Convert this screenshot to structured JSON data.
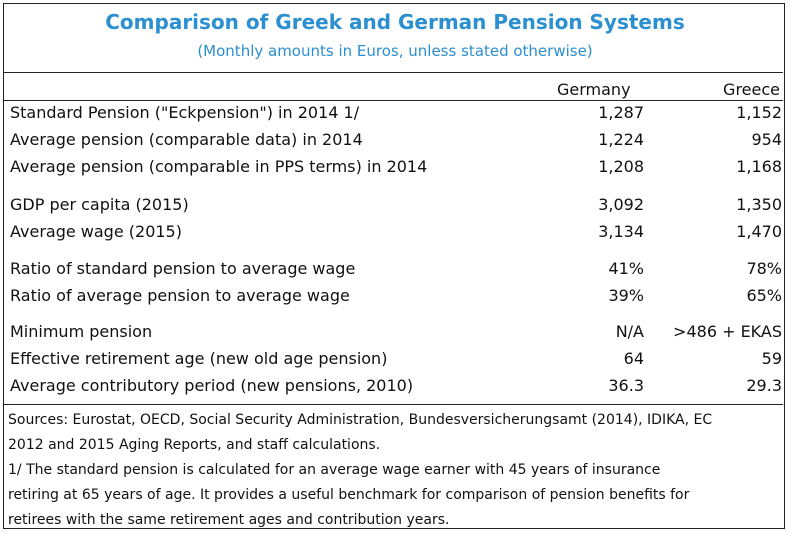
{
  "title": "Comparison of Greek and German Pension Systems",
  "subtitle": "(Monthly amounts in Euros, unless stated otherwise)",
  "columns": {
    "germany": "Germany",
    "greece": "Greece"
  },
  "rows": [
    {
      "label": "Standard Pension (\"Eckpension\") in 2014 1/",
      "germany": "1,287",
      "greece": "1,152"
    },
    {
      "label": "Average pension (comparable data) in 2014",
      "germany": "1,224",
      "greece": "954"
    },
    {
      "label": "Average pension (comparable in PPS terms) in 2014",
      "germany": "1,208",
      "greece": "1,168"
    },
    {
      "label": "GDP per capita (2015)",
      "germany": "3,092",
      "greece": "1,350"
    },
    {
      "label": "Average wage (2015)",
      "germany": "3,134",
      "greece": "1,470"
    },
    {
      "label": "Ratio of standard pension to average wage",
      "germany": "41%",
      "greece": "78%"
    },
    {
      "label": "Ratio of average pension to average wage",
      "germany": "39%",
      "greece": "65%"
    },
    {
      "label": "Minimum pension",
      "germany": "N/A",
      "greece": ">486 + EKAS"
    },
    {
      "label": "Effective retirement age (new old age pension)",
      "germany": "64",
      "greece": "59"
    },
    {
      "label": "Average contributory period (new pensions, 2010)",
      "germany": "36.3",
      "greece": "29.3"
    }
  ],
  "notes": [
    "Sources: Eurostat, OECD, Social Security Administration, Bundesversicherungsamt (2014), IDIKA, EC",
    "2012 and 2015 Aging Reports, and staff calculations.",
    "1/ The standard pension is calculated for an average wage earner with 45 years of insurance",
    "retiring at 65 years of age. It provides a useful benchmark for comparison of pension benefits for",
    "retirees with the same retirement ages and contribution years."
  ]
}
